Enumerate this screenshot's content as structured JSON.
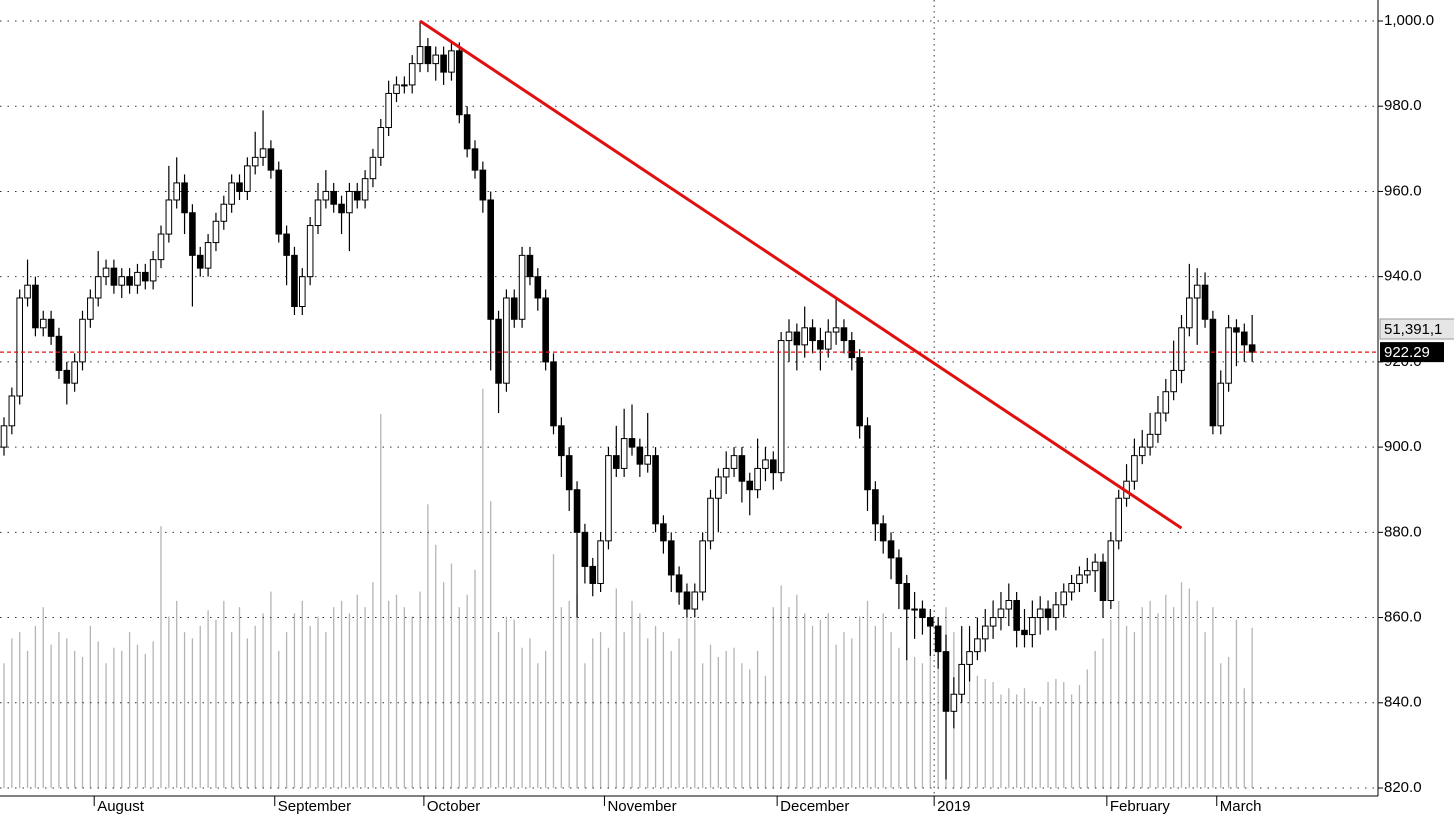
{
  "chart_data": {
    "type": "candlestick",
    "categories": [
      null,
      null,
      null,
      null,
      null,
      null,
      null,
      null,
      null,
      null,
      null,
      null,
      "August",
      null,
      null,
      null,
      null,
      null,
      null,
      null,
      null,
      null,
      null,
      null,
      null,
      null,
      null,
      null,
      null,
      null,
      null,
      null,
      null,
      null,
      null,
      "September",
      null,
      null,
      null,
      null,
      null,
      null,
      null,
      null,
      null,
      null,
      null,
      null,
      null,
      null,
      null,
      null,
      null,
      null,
      "October",
      null,
      null,
      null,
      null,
      null,
      null,
      null,
      null,
      null,
      null,
      null,
      null,
      null,
      null,
      null,
      null,
      null,
      null,
      null,
      null,
      null,
      null,
      "November",
      null,
      null,
      null,
      null,
      null,
      null,
      null,
      null,
      null,
      null,
      null,
      null,
      null,
      null,
      null,
      null,
      null,
      null,
      null,
      null,
      null,
      "December",
      null,
      null,
      null,
      null,
      null,
      null,
      null,
      null,
      null,
      null,
      null,
      null,
      null,
      null,
      null,
      null,
      null,
      null,
      null,
      "2019",
      null,
      null,
      null,
      null,
      null,
      null,
      null,
      null,
      null,
      null,
      null,
      null,
      null,
      null,
      null,
      null,
      null,
      null,
      null,
      null,
      null,
      "February",
      null,
      null,
      null,
      null,
      null,
      null,
      null,
      null,
      null,
      null,
      null,
      null,
      null,
      "March",
      null,
      null,
      null,
      null
    ],
    "open": [
      900,
      905,
      912,
      935,
      938,
      928,
      930,
      926,
      918,
      915,
      920,
      930,
      935,
      940,
      942,
      938,
      940,
      938,
      941,
      939,
      944,
      950,
      958,
      962,
      955,
      945,
      942,
      948,
      953,
      957,
      962,
      960,
      966,
      968,
      970,
      965,
      950,
      945,
      933,
      940,
      952,
      958,
      960,
      957,
      955,
      960,
      958,
      963,
      968,
      975,
      983,
      985,
      985,
      990,
      994,
      990,
      992,
      988,
      993,
      978,
      970,
      965,
      958,
      930,
      915,
      935,
      930,
      945,
      940,
      935,
      920,
      905,
      898,
      890,
      880,
      872,
      868,
      878,
      898,
      895,
      902,
      900,
      896,
      898,
      882,
      878,
      870,
      866,
      862,
      866,
      878,
      888,
      893,
      895,
      898,
      892,
      890,
      895,
      897,
      894,
      925,
      927,
      924,
      928,
      925,
      923,
      927,
      928,
      925,
      921,
      905,
      890,
      882,
      878,
      874,
      868,
      862,
      862,
      860,
      858,
      852,
      838,
      842,
      849,
      852,
      855,
      858,
      860,
      862,
      864,
      857,
      856,
      860,
      862,
      860,
      863,
      866,
      868,
      870,
      871,
      873,
      864,
      878,
      888,
      892,
      898,
      900,
      903,
      908,
      913,
      918,
      928,
      935,
      938,
      930,
      905,
      915,
      928,
      927,
      924
    ],
    "high": [
      907,
      914,
      937,
      944,
      940,
      932,
      932,
      928,
      920,
      922,
      932,
      937,
      946,
      944,
      944,
      942,
      942,
      943,
      943,
      946,
      952,
      966,
      968,
      964,
      957,
      947,
      950,
      955,
      959,
      964,
      964,
      968,
      974,
      979,
      972,
      967,
      952,
      947,
      942,
      954,
      962,
      965,
      962,
      959,
      962,
      962,
      965,
      970,
      977,
      986,
      987,
      987,
      992,
      1000,
      996,
      994,
      994,
      995,
      995,
      980,
      972,
      967,
      960,
      932,
      937,
      937,
      947,
      947,
      942,
      937,
      922,
      907,
      900,
      892,
      882,
      874,
      880,
      900,
      905,
      909,
      910,
      902,
      908,
      900,
      884,
      880,
      872,
      868,
      868,
      880,
      890,
      895,
      899,
      900,
      900,
      894,
      902,
      900,
      899,
      927,
      930,
      929,
      933,
      930,
      928,
      930,
      935,
      930,
      927,
      923,
      907,
      892,
      884,
      880,
      876,
      870,
      866,
      864,
      862,
      860,
      856,
      846,
      858,
      858,
      860,
      862,
      864,
      866,
      868,
      866,
      862,
      864,
      865,
      864,
      866,
      868,
      870,
      872,
      874,
      875,
      875,
      880,
      890,
      896,
      902,
      904,
      908,
      912,
      916,
      925,
      931,
      943,
      942,
      941,
      932,
      918,
      931,
      930,
      929,
      931
    ],
    "low": [
      898,
      903,
      910,
      933,
      926,
      926,
      924,
      916,
      910,
      913,
      918,
      928,
      933,
      938,
      936,
      935,
      936,
      936,
      937,
      937,
      942,
      948,
      956,
      950,
      933,
      940,
      940,
      946,
      951,
      955,
      958,
      958,
      964,
      966,
      963,
      948,
      938,
      931,
      931,
      938,
      950,
      956,
      955,
      950,
      946,
      956,
      956,
      961,
      966,
      973,
      981,
      983,
      983,
      988,
      988,
      986,
      985,
      986,
      976,
      968,
      963,
      955,
      918,
      908,
      913,
      928,
      928,
      938,
      932,
      918,
      903,
      893,
      885,
      860,
      868,
      865,
      866,
      876,
      893,
      893,
      898,
      893,
      894,
      880,
      875,
      866,
      863,
      860,
      860,
      864,
      876,
      880,
      889,
      893,
      887,
      884,
      888,
      892,
      890,
      892,
      920,
      918,
      921,
      922,
      918,
      921,
      924,
      922,
      918,
      902,
      885,
      878,
      875,
      869,
      862,
      850,
      855,
      856,
      851,
      848,
      822,
      834,
      840,
      845,
      850,
      852,
      855,
      857,
      858,
      853,
      853,
      853,
      856,
      857,
      857,
      860,
      864,
      866,
      868,
      866,
      860,
      862,
      876,
      886,
      890,
      896,
      898,
      901,
      906,
      911,
      915,
      926,
      924,
      928,
      903,
      903,
      913,
      919,
      920,
      920
    ],
    "close": [
      905,
      912,
      935,
      938,
      928,
      930,
      926,
      918,
      915,
      920,
      930,
      935,
      940,
      942,
      938,
      940,
      938,
      941,
      939,
      944,
      950,
      958,
      962,
      955,
      945,
      942,
      948,
      953,
      957,
      962,
      960,
      966,
      968,
      970,
      965,
      950,
      945,
      933,
      940,
      952,
      958,
      960,
      957,
      955,
      960,
      958,
      963,
      968,
      975,
      983,
      985,
      985,
      990,
      994,
      990,
      992,
      988,
      993,
      978,
      970,
      965,
      958,
      930,
      915,
      935,
      930,
      945,
      940,
      935,
      920,
      905,
      898,
      890,
      880,
      872,
      868,
      878,
      898,
      895,
      902,
      900,
      896,
      898,
      882,
      878,
      870,
      866,
      862,
      866,
      878,
      888,
      893,
      895,
      898,
      892,
      890,
      895,
      897,
      894,
      925,
      927,
      924,
      928,
      925,
      923,
      927,
      928,
      925,
      921,
      905,
      890,
      882,
      878,
      874,
      868,
      862,
      862,
      860,
      858,
      852,
      838,
      842,
      849,
      852,
      855,
      858,
      860,
      862,
      864,
      857,
      856,
      860,
      862,
      860,
      863,
      866,
      868,
      870,
      871,
      873,
      864,
      878,
      888,
      892,
      898,
      900,
      903,
      908,
      913,
      918,
      928,
      935,
      938,
      930,
      905,
      915,
      928,
      927,
      924,
      922.29
    ],
    "volume": [
      40,
      48,
      50,
      44,
      52,
      58,
      46,
      50,
      48,
      44,
      42,
      52,
      47,
      40,
      45,
      44,
      50,
      46,
      43,
      47,
      84,
      55,
      60,
      50,
      48,
      52,
      57,
      54,
      60,
      50,
      58,
      48,
      52,
      56,
      63,
      44,
      50,
      56,
      60,
      52,
      55,
      50,
      58,
      60,
      56,
      62,
      58,
      66,
      120,
      60,
      62,
      58,
      55,
      63,
      91,
      78,
      66,
      72,
      58,
      62,
      70,
      128,
      92,
      50,
      55,
      54,
      45,
      48,
      40,
      44,
      75,
      58,
      60,
      62,
      40,
      48,
      50,
      45,
      64,
      50,
      60,
      56,
      48,
      52,
      50,
      44,
      48,
      55,
      54,
      40,
      46,
      42,
      44,
      45,
      40,
      38,
      44,
      36,
      58,
      65,
      58,
      62,
      56,
      52,
      54,
      56,
      46,
      50,
      48,
      55,
      60,
      52,
      56,
      50,
      45,
      58,
      42,
      40,
      52,
      54,
      58,
      50,
      42,
      40,
      36,
      35,
      34,
      30,
      32,
      30,
      32,
      28,
      26,
      34,
      35,
      34,
      30,
      33,
      38,
      44,
      48,
      54,
      60,
      52,
      50,
      58,
      60,
      56,
      62,
      58,
      66,
      64,
      60,
      50,
      58,
      40,
      42,
      54,
      32,
      51.39
    ],
    "volume_label": "51,391,1",
    "last_price": 922.29,
    "trendline": {
      "start": [
        53,
        1000
      ],
      "end": [
        150,
        881
      ],
      "color": "#e01010"
    },
    "up_color": "#ffffff",
    "down_color": "#000000",
    "volume_color": "#b4b4b4",
    "ylim": [
      820,
      1000
    ],
    "yticks": [
      {
        "value": 820,
        "label": "820.0"
      },
      {
        "value": 840,
        "label": "840.0"
      },
      {
        "value": 860,
        "label": "860.0"
      },
      {
        "value": 880,
        "label": "880.0"
      },
      {
        "value": 900,
        "label": "900.0"
      },
      {
        "value": 920,
        "label": "920.0"
      },
      {
        "value": 940,
        "label": "940.0"
      },
      {
        "value": 960,
        "label": "960.0"
      },
      {
        "value": 980,
        "label": "980.0"
      },
      {
        "value": 1000,
        "label": "1,000.0"
      }
    ],
    "vlim": [
      0,
      246
    ],
    "grid": true
  }
}
